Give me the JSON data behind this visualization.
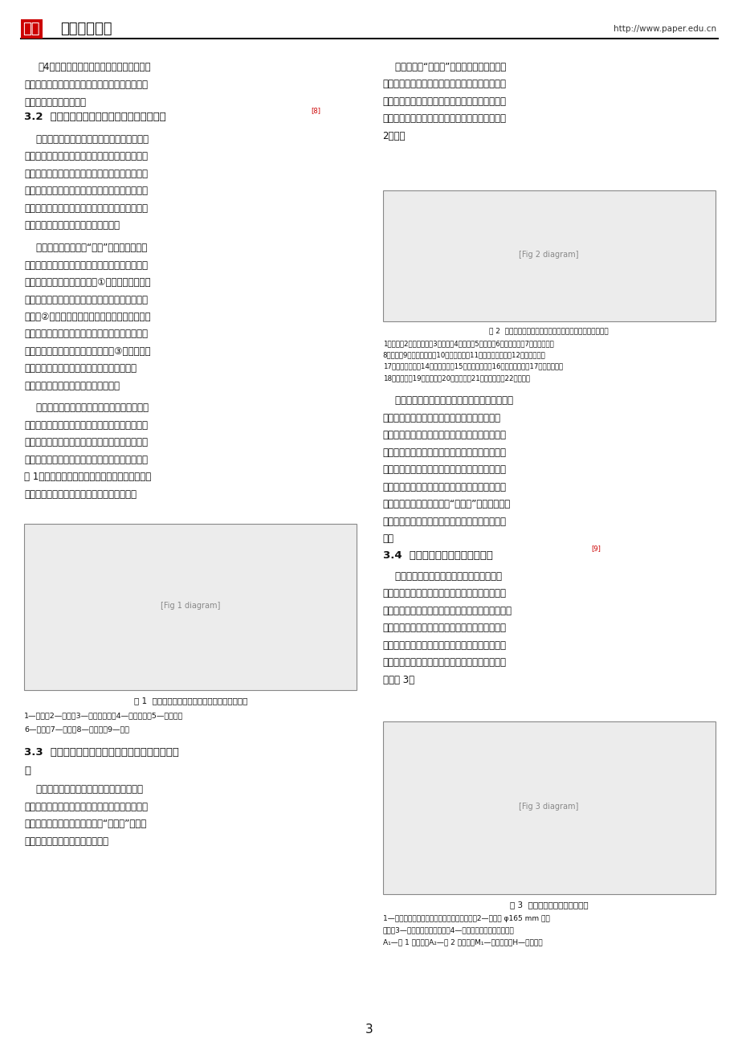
{
  "background_color": "#ffffff",
  "header_logo_red": "中国",
  "header_logo_black": "科技论文在线",
  "header_url": "http://www.paper.edu.cn",
  "footer_page": "3",
  "sec32_heading": "3.2  深井连续推进帷幕隔墙跟随充填采矿技术",
  "sec32_sup": "[8]",
  "sec34_heading": "3.4  无间柱连续分层充填采矿技术",
  "sec34_sup": "[9]",
  "sec33_heading1": "3.3  缓倾斜层状含水松软矿体深孔合采连续采矿技",
  "sec33_heading2": "术",
  "fig1_caption": "图 1  湘西金矿深井缓倾斜薄矿脉采矿方法示意图",
  "fig1_note1": "1—沿脉；2—漏斗；3—尼龙充填体；4—水压支柱；5—上切巧；",
  "fig1_note2": "6—沿脉；7—切巧；8—人行道；9—底盘",
  "fig2_caption": "图 2  缓倾斜层状软松软矿体深孔合采连续采矿工艺系统意图",
  "fig2_note1": "1、石矿；2、崩落矿石；3、电机；4、溜机；5、矿石；6、回填矿石；7、出矿漏斗；",
  "fig2_note2": "8、电车；9、矿石运输机；10、矿面撮斗；11、顶板临时撮斗；12、矿石撮斗；",
  "fig2_note3": "17、岩石分离矿；14、矿面撮斗；15、废石打矿斗；16、矿浆输送矿；17、矿浆输送；",
  "fig2_note4": "18、电车室；19、矿面室；20、废墙站；21、管线管管；22、电机室",
  "fig3_caption": "图 3  无间柱连续采矿技术方案图",
  "fig3_note1": "1—无二次掖矿平层部分的废矿矿板底部孔距；2—直径为 φ165 mm 的垂",
  "fig3_note2": "直深；3—层间回采的临时对矿；4—高水速凝矿矿体充填体体；",
  "fig3_note3": "A₁—第 1 区长度；A₂—第 2 区长度；M₁—矿体厚度；H—一段高度"
}
